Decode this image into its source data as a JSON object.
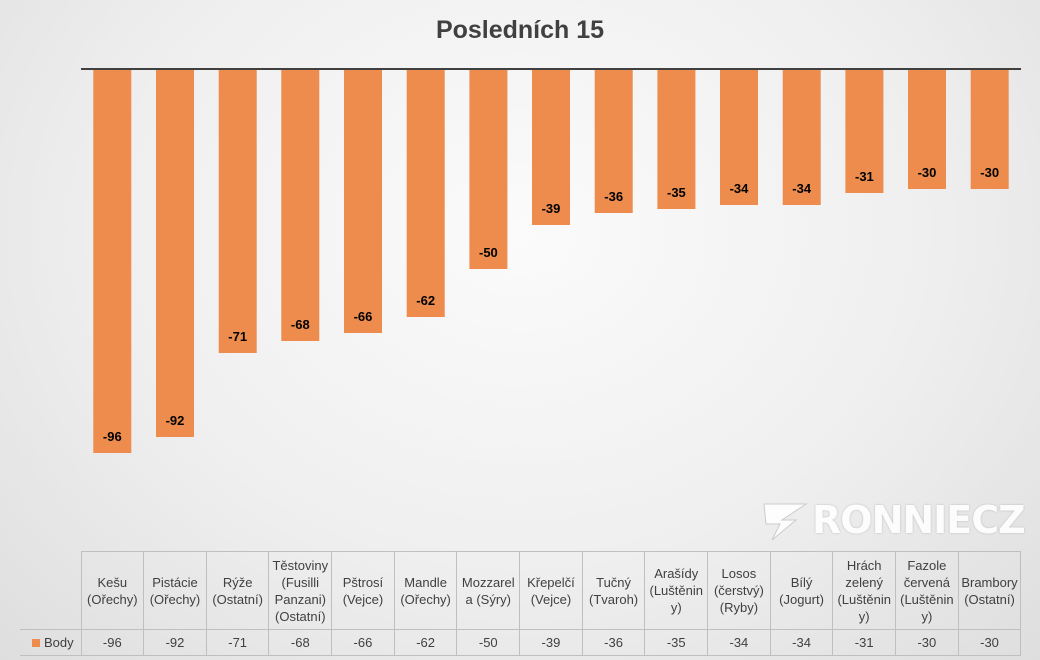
{
  "chart_data": {
    "type": "bar",
    "title": "Posledních 15",
    "categories": [
      [
        "Kešu",
        "(Ořechy)"
      ],
      [
        "Pistácie",
        "(Ořechy)"
      ],
      [
        "Rýže",
        "(Ostatní)"
      ],
      [
        "Těstoviny",
        "(Fusilli",
        "Panzani)",
        "(Ostatní)"
      ],
      [
        "Pštrosí",
        "(Vejce)"
      ],
      [
        "Mandle",
        "(Ořechy)"
      ],
      [
        "Mozzarel",
        "a (Sýry)"
      ],
      [
        "Křepelčí",
        "(Vejce)"
      ],
      [
        "Tučný",
        "(Tvaroh)"
      ],
      [
        "Arašídy",
        "(Luštěnin",
        "y)"
      ],
      [
        "Losos",
        "(čerstvý)",
        "(Ryby)"
      ],
      [
        "Bílý",
        "(Jogurt)"
      ],
      [
        "Hrách",
        "zelený",
        "(Luštěnin",
        "y)"
      ],
      [
        "Fazole",
        "červená",
        "(Luštěnin",
        "y)"
      ],
      [
        "Brambory",
        "(Ostatní)"
      ]
    ],
    "series": [
      {
        "name": "Body",
        "color": "#ED8C4C",
        "values": [
          -96,
          -92,
          -71,
          -68,
          -66,
          -62,
          -50,
          -39,
          -36,
          -35,
          -34,
          -34,
          -31,
          -30,
          -30
        ]
      }
    ],
    "ylim": [
      -100,
      0
    ],
    "grid": false,
    "data_labels": true,
    "legend": "data-table"
  },
  "watermark": {
    "text": "RONNIECZ"
  }
}
